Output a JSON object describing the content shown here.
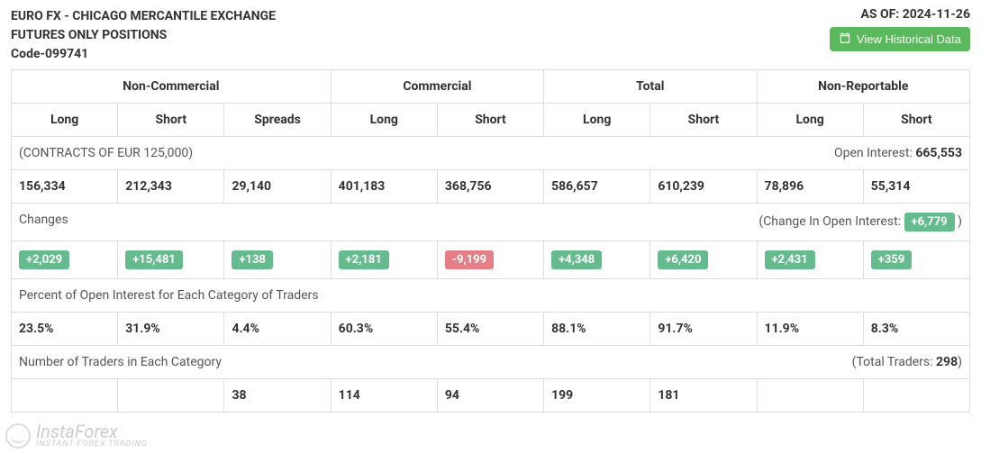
{
  "header": {
    "title_line1": "EURO FX - CHICAGO MERCANTILE EXCHANGE",
    "title_line2": "FUTURES ONLY POSITIONS",
    "title_line3": "Code-099741",
    "as_of_label": "AS OF: 2024-11-26",
    "historical_btn": "View Historical Data"
  },
  "table": {
    "groups": [
      {
        "label": "Non-Commercial",
        "span": 3
      },
      {
        "label": "Commercial",
        "span": 2
      },
      {
        "label": "Total",
        "span": 2
      },
      {
        "label": "Non-Reportable",
        "span": 2
      }
    ],
    "subheaders": [
      "Long",
      "Short",
      "Spreads",
      "Long",
      "Short",
      "Long",
      "Short",
      "Long",
      "Short"
    ],
    "section_contracts": {
      "label": "(CONTRACTS OF EUR 125,000)",
      "right_label": "Open Interest: ",
      "right_value": "665,553"
    },
    "row_values": [
      "156,334",
      "212,343",
      "29,140",
      "401,183",
      "368,756",
      "586,657",
      "610,239",
      "78,896",
      "55,314"
    ],
    "section_changes": {
      "label": "Changes",
      "right_label": "(Change In Open Interest: ",
      "right_value": "+6,779",
      "right_suffix": " )"
    },
    "row_changes": [
      {
        "v": "+2,029",
        "pos": true
      },
      {
        "v": "+15,481",
        "pos": true
      },
      {
        "v": "+138",
        "pos": true
      },
      {
        "v": "+2,181",
        "pos": true
      },
      {
        "v": "-9,199",
        "pos": false
      },
      {
        "v": "+4,348",
        "pos": true
      },
      {
        "v": "+6,420",
        "pos": true
      },
      {
        "v": "+2,431",
        "pos": true
      },
      {
        "v": "+359",
        "pos": true
      }
    ],
    "section_percent": "Percent of Open Interest for Each Category of Traders",
    "row_percent": [
      "23.5%",
      "31.9%",
      "4.4%",
      "60.3%",
      "55.4%",
      "88.1%",
      "91.7%",
      "11.9%",
      "8.3%"
    ],
    "section_traders": {
      "label": "Number of Traders in Each Category",
      "right_label": "(Total Traders: ",
      "right_value": "298",
      "right_suffix": ")"
    },
    "row_traders": [
      "",
      "",
      "38",
      "114",
      "94",
      "199",
      "181",
      "",
      ""
    ]
  },
  "watermark": {
    "name": "InstaForex",
    "tagline": "Instant Forex Trading"
  },
  "style": {
    "colors": {
      "border": "#dddddd",
      "text": "#333333",
      "muted": "#555555",
      "badge_pos_bg": "#66bb8e",
      "badge_neg_bg": "#e57f87",
      "btn_bg": "#5cb85c",
      "white": "#ffffff"
    }
  }
}
